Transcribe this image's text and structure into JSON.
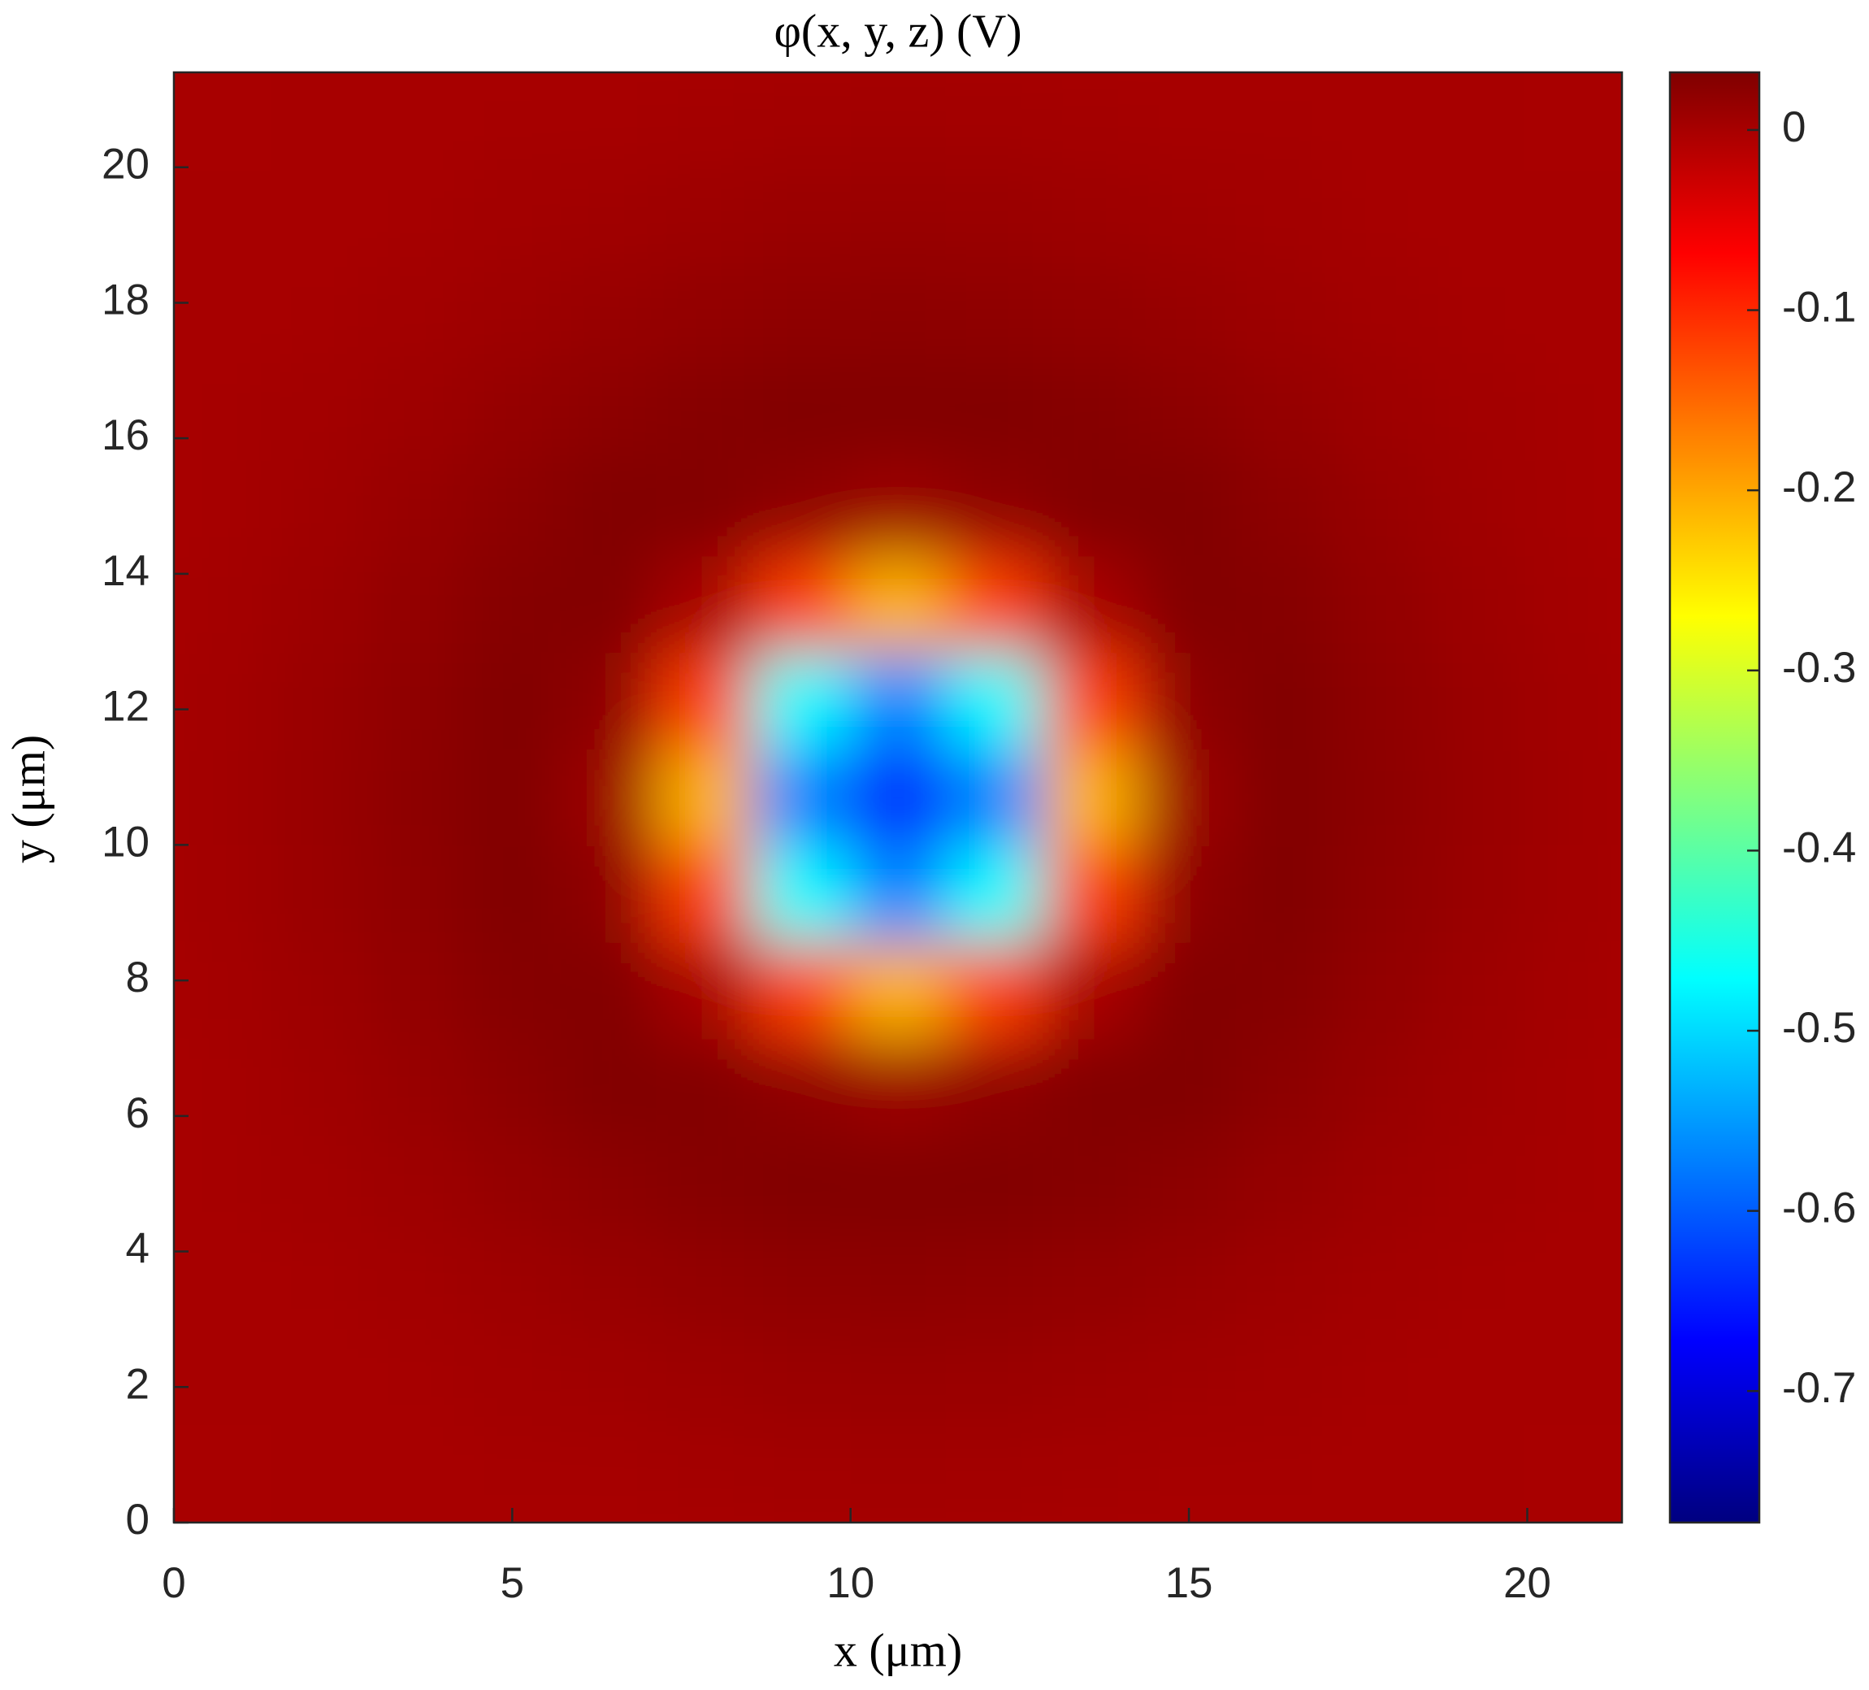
{
  "chart_data": {
    "type": "heatmap",
    "title": "φ(x, y, z) (V)",
    "x_label": "x (μm)",
    "y_label": "y (μm)",
    "x": [
      0.71,
      2.14,
      3.57,
      4.99,
      6.42,
      7.85,
      9.27,
      10.7,
      12.13,
      13.55,
      14.98,
      16.41,
      17.83,
      19.26,
      20.69
    ],
    "y": [
      0.71,
      2.14,
      3.57,
      4.99,
      6.42,
      7.85,
      9.27,
      10.7,
      12.13,
      13.55,
      14.98,
      16.41,
      17.83,
      19.26,
      20.69
    ],
    "z": [
      [
        0,
        0.001,
        0.001,
        0.002,
        0.002,
        0.003,
        0.004,
        0.005,
        0.004,
        0.003,
        0.002,
        0.002,
        0.001,
        0.001,
        0
      ],
      [
        0.001,
        0.001,
        0.002,
        0.004,
        0.006,
        0.009,
        0.011,
        0.012,
        0.011,
        0.009,
        0.006,
        0.004,
        0.002,
        0.001,
        0.001
      ],
      [
        0.001,
        0.002,
        0.004,
        0.008,
        0.013,
        0.017,
        0.02,
        0.021,
        0.02,
        0.017,
        0.013,
        0.008,
        0.004,
        0.002,
        0.001
      ],
      [
        0.002,
        0.004,
        0.008,
        0.015,
        0.021,
        0.027,
        0.03,
        0.03,
        0.03,
        0.027,
        0.021,
        0.015,
        0.008,
        0.004,
        0.002
      ],
      [
        0.002,
        0.006,
        0.013,
        0.021,
        0.03,
        0.029,
        0.02,
        0.01,
        0.02,
        0.029,
        0.03,
        0.021,
        0.013,
        0.006,
        0.002
      ],
      [
        0.003,
        0.009,
        0.017,
        0.027,
        0.029,
        0,
        -0.12,
        -0.21,
        -0.12,
        0,
        0.029,
        0.027,
        0.017,
        0.009,
        0.003
      ],
      [
        0.004,
        0.011,
        0.02,
        0.03,
        0.02,
        -0.12,
        -0.47,
        -0.57,
        -0.47,
        -0.12,
        0.02,
        0.03,
        0.02,
        0.011,
        0.004
      ],
      [
        0.005,
        0.012,
        0.021,
        0.03,
        0.01,
        -0.21,
        -0.57,
        -0.64,
        -0.57,
        -0.21,
        0.01,
        0.03,
        0.021,
        0.012,
        0.005
      ],
      [
        0.004,
        0.011,
        0.02,
        0.03,
        0.02,
        -0.12,
        -0.47,
        -0.57,
        -0.47,
        -0.12,
        0.02,
        0.03,
        0.02,
        0.011,
        0.004
      ],
      [
        0.003,
        0.009,
        0.017,
        0.027,
        0.029,
        0,
        -0.12,
        -0.21,
        -0.12,
        0,
        0.029,
        0.027,
        0.017,
        0.009,
        0.003
      ],
      [
        0.002,
        0.006,
        0.013,
        0.021,
        0.03,
        0.029,
        0.02,
        0.01,
        0.02,
        0.029,
        0.03,
        0.021,
        0.013,
        0.006,
        0.002
      ],
      [
        0.002,
        0.004,
        0.008,
        0.015,
        0.021,
        0.027,
        0.03,
        0.03,
        0.03,
        0.027,
        0.021,
        0.015,
        0.008,
        0.004,
        0.002
      ],
      [
        0.001,
        0.002,
        0.004,
        0.008,
        0.013,
        0.017,
        0.02,
        0.021,
        0.02,
        0.017,
        0.013,
        0.008,
        0.004,
        0.002,
        0.001
      ],
      [
        0.001,
        0.001,
        0.002,
        0.004,
        0.006,
        0.009,
        0.011,
        0.012,
        0.011,
        0.009,
        0.006,
        0.004,
        0.002,
        0.001,
        0.001
      ],
      [
        0,
        0.001,
        0.001,
        0.002,
        0.002,
        0.003,
        0.004,
        0.005,
        0.004,
        0.003,
        0.002,
        0.002,
        0.001,
        0.001,
        0
      ]
    ],
    "colormap": "jet",
    "xlim": [
      0,
      21.4
    ],
    "ylim": [
      0,
      21.4
    ],
    "xticks": [
      0,
      5,
      10,
      15,
      20
    ],
    "yticks": [
      0,
      2,
      4,
      6,
      8,
      10,
      12,
      14,
      16,
      18,
      20
    ],
    "clim": [
      -0.773,
      0.032
    ],
    "cticks": [
      0,
      -0.1,
      -0.2,
      -0.3,
      -0.4,
      -0.5,
      -0.6,
      -0.7
    ]
  }
}
